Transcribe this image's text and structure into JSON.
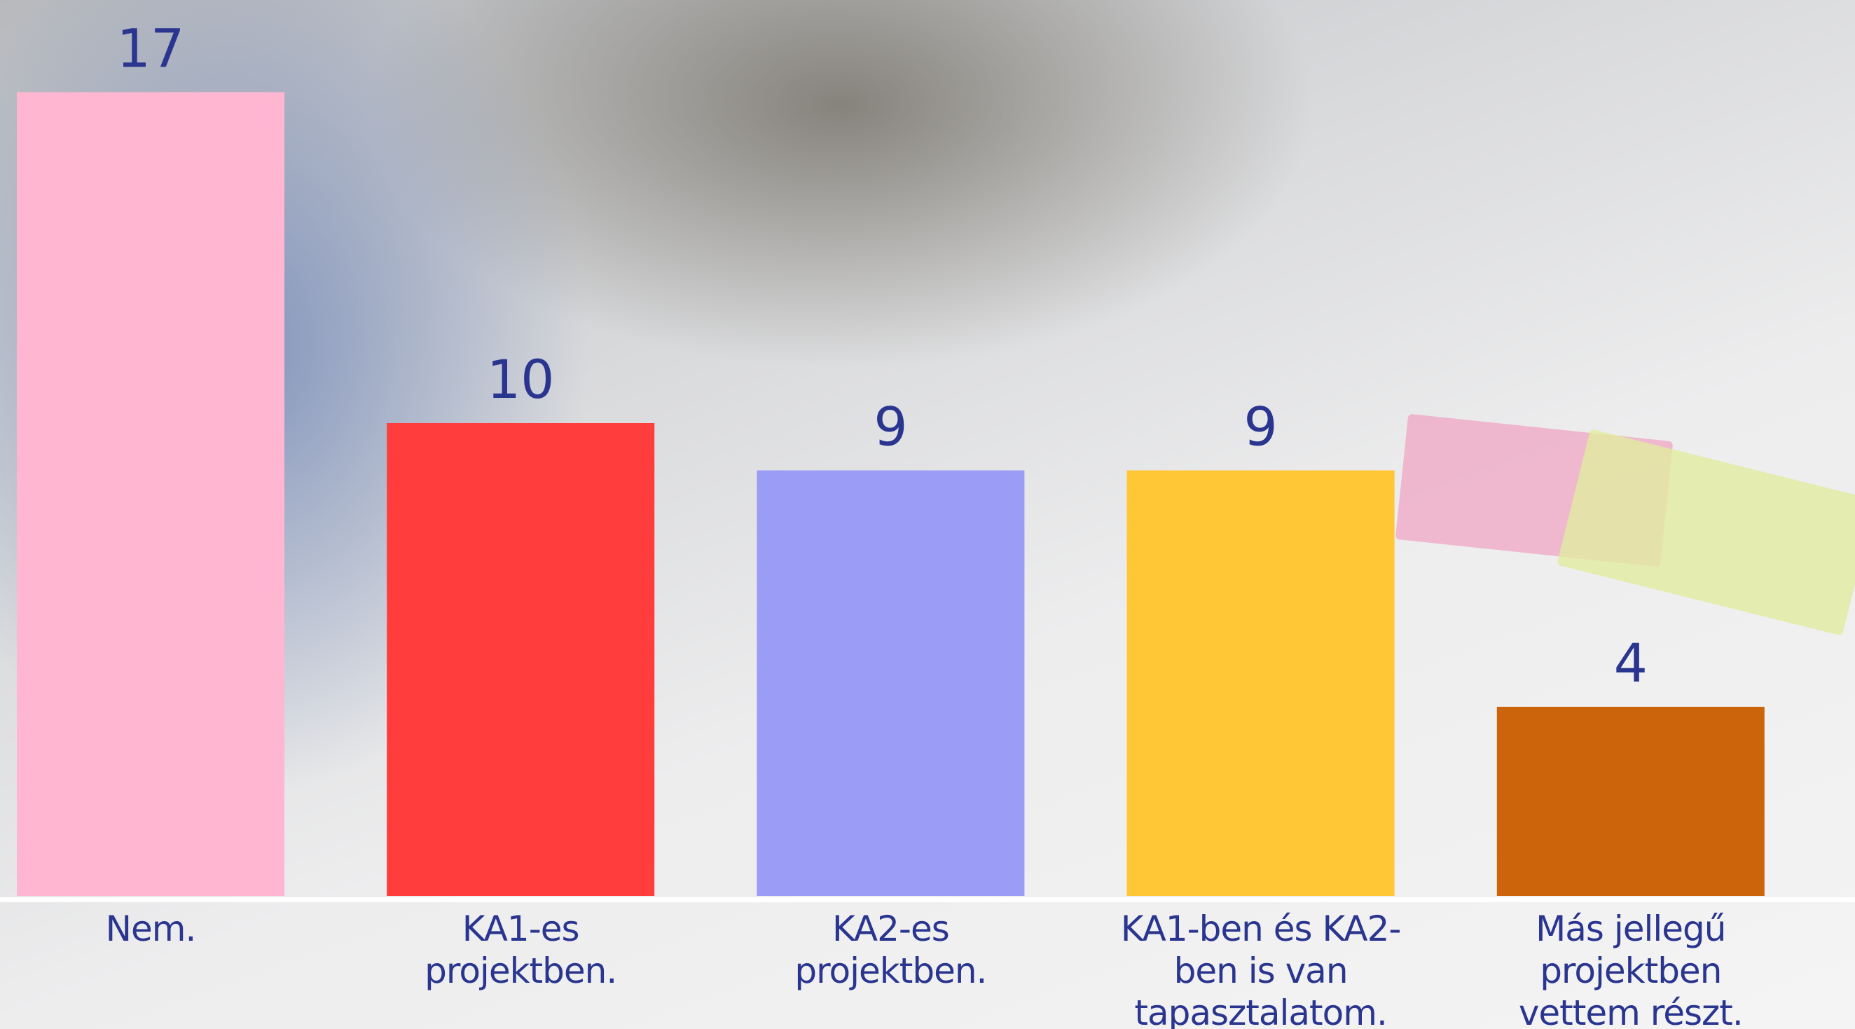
{
  "chart_data": {
    "type": "bar",
    "categories": [
      "Nem.",
      "KA1-es projektben.",
      "KA2-es projektben.",
      "KA1-ben és KA2-ben is van tapasztalatom.",
      "Más jellegű projektben vettem részt."
    ],
    "series": [
      {
        "values": [
          17,
          10,
          9,
          9,
          4
        ],
        "colors": [
          "#ffb6d1",
          "#ff3d3d",
          "#9b9cf5",
          "#ffc636",
          "#cc640c"
        ]
      }
    ]
  }
}
